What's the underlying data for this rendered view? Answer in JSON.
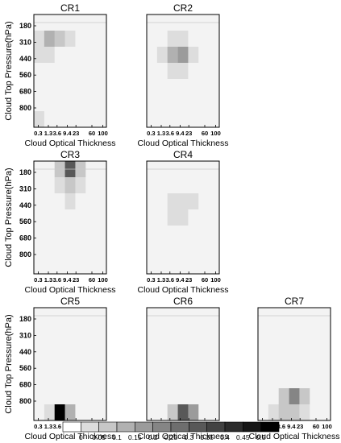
{
  "chart_data": [
    {
      "type": "heatmap",
      "title": "CR1",
      "xlabel": "Cloud Optical Thickness",
      "ylabel": "Cloud Top Pressure(hPa)",
      "x_ticks": [
        "0.3",
        "1.3",
        "3.6",
        "9.4",
        "23",
        "60",
        "100"
      ],
      "y_ticks": [
        "180",
        "310",
        "440",
        "560",
        "680",
        "800"
      ],
      "values": [
        [
          0.02,
          0.02,
          0.02,
          0.02,
          0.02,
          0.02,
          0.02
        ],
        [
          0.06,
          0.14,
          0.1,
          0.06,
          0.02,
          0.02,
          0.02
        ],
        [
          0.05,
          0.06,
          0.04,
          0.02,
          0.02,
          0.02,
          0.02
        ],
        [
          0.02,
          0.02,
          0.02,
          0.02,
          0.02,
          0.02,
          0.02
        ],
        [
          0.02,
          0.02,
          0.02,
          0.02,
          0.02,
          0.02,
          0.02
        ],
        [
          0.02,
          0.02,
          0.02,
          0.02,
          0.02,
          0.02,
          0.02
        ],
        [
          0.06,
          0.03,
          0.02,
          0.02,
          0.02,
          0.02,
          0.02
        ]
      ]
    },
    {
      "type": "heatmap",
      "title": "CR2",
      "xlabel": "Cloud Optical Thickness",
      "ylabel": "",
      "x_ticks": [
        "0.3",
        "1.3",
        "3.6",
        "9.4",
        "23",
        "60",
        "100"
      ],
      "y_ticks": [],
      "values": [
        [
          0.02,
          0.02,
          0.02,
          0.02,
          0.02,
          0.02,
          0.02
        ],
        [
          0.02,
          0.04,
          0.05,
          0.05,
          0.04,
          0.02,
          0.02
        ],
        [
          0.03,
          0.08,
          0.15,
          0.17,
          0.08,
          0.02,
          0.02
        ],
        [
          0.02,
          0.04,
          0.05,
          0.05,
          0.03,
          0.02,
          0.02
        ],
        [
          0.02,
          0.02,
          0.02,
          0.02,
          0.02,
          0.02,
          0.02
        ],
        [
          0.02,
          0.02,
          0.02,
          0.02,
          0.02,
          0.02,
          0.02
        ],
        [
          0.02,
          0.02,
          0.02,
          0.02,
          0.02,
          0.02,
          0.02
        ]
      ]
    },
    {
      "type": "heatmap",
      "title": "CR3",
      "xlabel": "Cloud Optical Thickness",
      "ylabel": "Cloud Top Pressure(hPa)",
      "x_ticks": [
        "0.3",
        "1.3",
        "3.6",
        "9.4",
        "23",
        "60",
        "100"
      ],
      "y_ticks": [
        "180",
        "310",
        "440",
        "560",
        "680",
        "800"
      ],
      "values": [
        [
          0.02,
          0.04,
          0.12,
          0.3,
          0.12,
          0.02,
          0.02
        ],
        [
          0.02,
          0.03,
          0.07,
          0.1,
          0.06,
          0.02,
          0.02
        ],
        [
          0.02,
          0.02,
          0.04,
          0.05,
          0.04,
          0.02,
          0.02
        ],
        [
          0.02,
          0.02,
          0.02,
          0.02,
          0.02,
          0.02,
          0.02
        ],
        [
          0.02,
          0.02,
          0.02,
          0.02,
          0.02,
          0.02,
          0.02
        ],
        [
          0.02,
          0.02,
          0.02,
          0.02,
          0.02,
          0.02,
          0.02
        ],
        [
          0.02,
          0.02,
          0.02,
          0.02,
          0.04,
          0.02,
          0.02
        ]
      ]
    },
    {
      "type": "heatmap",
      "title": "CR4",
      "xlabel": "Cloud Optical Thickness",
      "ylabel": "",
      "x_ticks": [
        "0.3",
        "1.3",
        "3.6",
        "9.4",
        "23",
        "60",
        "100"
      ],
      "y_ticks": [],
      "values": [
        [
          0.02,
          0.02,
          0.02,
          0.02,
          0.02,
          0.02,
          0.02
        ],
        [
          0.02,
          0.02,
          0.03,
          0.04,
          0.03,
          0.02,
          0.02
        ],
        [
          0.02,
          0.03,
          0.06,
          0.08,
          0.05,
          0.02,
          0.02
        ],
        [
          0.02,
          0.03,
          0.05,
          0.06,
          0.04,
          0.02,
          0.02
        ],
        [
          0.02,
          0.03,
          0.04,
          0.04,
          0.03,
          0.02,
          0.02
        ],
        [
          0.02,
          0.03,
          0.03,
          0.02,
          0.02,
          0.02,
          0.02
        ],
        [
          0.02,
          0.03,
          0.03,
          0.02,
          0.02,
          0.02,
          0.02
        ]
      ]
    },
    {
      "type": "heatmap",
      "title": "CR5",
      "xlabel": "Cloud Optical Thickness",
      "ylabel": "Cloud Top Pressure(hPa)",
      "x_ticks": [
        "0.3",
        "1.3",
        "3.6",
        "9.4",
        "23",
        "60",
        "100"
      ],
      "y_ticks": [
        "180",
        "310",
        "440",
        "560",
        "680",
        "800"
      ],
      "values": [
        [
          0.02,
          0.02,
          0.02,
          0.02,
          0.02,
          0.02,
          0.02
        ],
        [
          0.02,
          0.02,
          0.02,
          0.02,
          0.02,
          0.02,
          0.02
        ],
        [
          0.02,
          0.02,
          0.02,
          0.02,
          0.02,
          0.02,
          0.02
        ],
        [
          0.02,
          0.02,
          0.02,
          0.02,
          0.02,
          0.02,
          0.02
        ],
        [
          0.02,
          0.02,
          0.02,
          0.02,
          0.02,
          0.02,
          0.02
        ],
        [
          0.02,
          0.02,
          0.02,
          0.04,
          0.02,
          0.02,
          0.02
        ],
        [
          0.02,
          0.05,
          0.5,
          0.14,
          0.02,
          0.02,
          0.02
        ]
      ]
    },
    {
      "type": "heatmap",
      "title": "CR6",
      "xlabel": "Cloud Optical Thickness",
      "ylabel": "",
      "x_ticks": [
        "0.3",
        "1.3",
        "3.6",
        "9.4",
        "23",
        "60",
        "100"
      ],
      "y_ticks": [],
      "values": [
        [
          0.02,
          0.02,
          0.02,
          0.02,
          0.02,
          0.02,
          0.02
        ],
        [
          0.02,
          0.02,
          0.02,
          0.02,
          0.02,
          0.02,
          0.02
        ],
        [
          0.02,
          0.02,
          0.02,
          0.02,
          0.02,
          0.02,
          0.02
        ],
        [
          0.02,
          0.02,
          0.02,
          0.02,
          0.02,
          0.02,
          0.02
        ],
        [
          0.02,
          0.02,
          0.02,
          0.02,
          0.02,
          0.02,
          0.02
        ],
        [
          0.02,
          0.02,
          0.02,
          0.02,
          0.02,
          0.02,
          0.02
        ],
        [
          0.02,
          0.04,
          0.12,
          0.32,
          0.18,
          0.03,
          0.02
        ]
      ]
    },
    {
      "type": "heatmap",
      "title": "CR7",
      "xlabel": "Cloud Optical Thickness",
      "ylabel": "",
      "x_ticks": [
        "0.3",
        "1.3",
        "3.6",
        "9.4",
        "23",
        "60",
        "100"
      ],
      "y_ticks": [],
      "values": [
        [
          0.02,
          0.02,
          0.02,
          0.02,
          0.02,
          0.02,
          0.02
        ],
        [
          0.02,
          0.02,
          0.02,
          0.02,
          0.02,
          0.02,
          0.02
        ],
        [
          0.02,
          0.02,
          0.02,
          0.02,
          0.02,
          0.02,
          0.02
        ],
        [
          0.02,
          0.02,
          0.02,
          0.02,
          0.02,
          0.02,
          0.02
        ],
        [
          0.02,
          0.02,
          0.02,
          0.02,
          0.02,
          0.02,
          0.02
        ],
        [
          0.02,
          0.04,
          0.1,
          0.22,
          0.1,
          0.02,
          0.02
        ],
        [
          0.02,
          0.06,
          0.1,
          0.12,
          0.08,
          0.02,
          0.02
        ]
      ]
    }
  ],
  "colorbar": {
    "ticks": [
      "0",
      "0.05",
      "0.1",
      "0.15",
      "0.2",
      "0.25",
      "0.3",
      "0.35",
      "0.4",
      "0.45",
      "0.5"
    ],
    "levels": 12
  }
}
